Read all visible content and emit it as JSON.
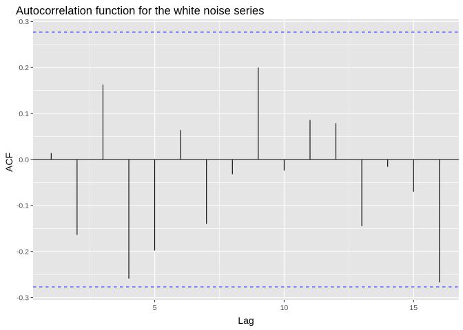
{
  "chart_data": {
    "type": "bar",
    "title": "Autocorrelation function for the white noise series",
    "xlabel": "Lag",
    "ylabel": "ACF",
    "x": [
      1,
      2,
      3,
      4,
      5,
      6,
      7,
      8,
      9,
      10,
      11,
      12,
      13,
      14,
      15,
      16
    ],
    "values": [
      0.014,
      -0.164,
      0.163,
      -0.259,
      -0.198,
      0.064,
      -0.14,
      -0.032,
      0.2,
      -0.024,
      0.086,
      0.079,
      -0.145,
      -0.016,
      -0.07,
      -0.267
    ],
    "xlim": [
      0.3,
      16.75
    ],
    "ylim": [
      -0.305,
      0.305
    ],
    "xticks": [
      5,
      10,
      15
    ],
    "xtick_labels": [
      "5",
      "10",
      "15"
    ],
    "yticks": [
      -0.3,
      -0.2,
      -0.1,
      0.0,
      0.1,
      0.2,
      0.3
    ],
    "ytick_labels": [
      "-0.3",
      "-0.2",
      "-0.1",
      "0.0",
      "0.1",
      "0.2",
      "0.3"
    ],
    "confidence_bounds": [
      0.277,
      -0.277
    ],
    "grid": true,
    "colors": {
      "panel": "#e5e5e5",
      "grid_major": "#ffffff",
      "bars": "#000000",
      "bounds": "#0000ff"
    }
  }
}
